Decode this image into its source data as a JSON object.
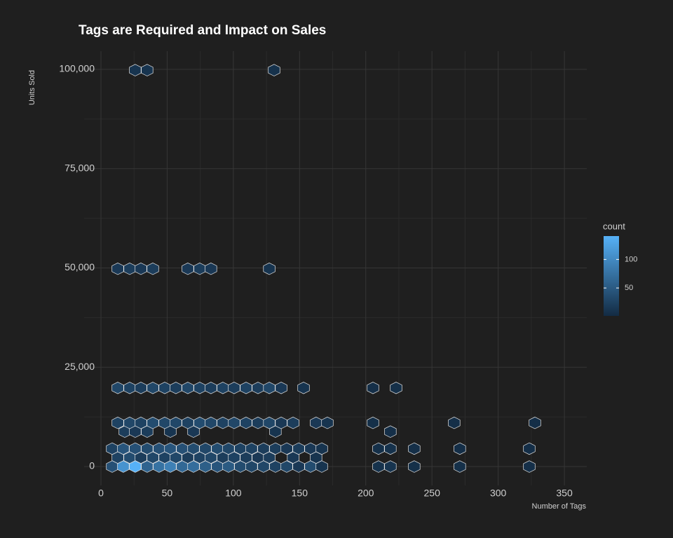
{
  "chart_data": {
    "type": "hexbin",
    "title": "Tags are Required and Impact on Sales",
    "x_label": "Number of Tags",
    "y_label": "Units Sold",
    "xlim": [
      -12.7,
      366.9
    ],
    "ylim": [
      -4760,
      104590
    ],
    "xticks": [
      0,
      50,
      100,
      150,
      200,
      250,
      300,
      350
    ],
    "yticks": [
      {
        "value": 0,
        "label": "0"
      },
      {
        "value": 25000,
        "label": "25,000"
      },
      {
        "value": 50000,
        "label": "50,000"
      },
      {
        "value": 75000,
        "label": "75,000"
      },
      {
        "value": 100000,
        "label": "100,000"
      }
    ],
    "x_minor_ticks": [
      25,
      75,
      125,
      175,
      225,
      275,
      325
    ],
    "y_minor_ticks": [
      12500,
      37500,
      62500,
      87500
    ],
    "grid": true,
    "legend": {
      "title": "count",
      "ticks": [
        50,
        100
      ],
      "lim": [
        1,
        141
      ],
      "color_low": "#132B43",
      "color_high": "#56B1F7",
      "position": "right"
    },
    "hex_rows": [
      {
        "y": 0,
        "x": [
          8.5,
          16.9,
          25.9,
          34.9,
          43.9,
          52.4,
          61.4,
          69.9,
          78.9,
          87.9,
          96.3,
          105.3,
          113.8,
          122.8,
          131.8,
          140.3,
          149.3,
          158.3,
          166.8,
          209.6,
          218.6,
          236.6,
          271,
          323.5
        ],
        "count": [
          40,
          110,
          141,
          60,
          75,
          90,
          65,
          70,
          55,
          45,
          50,
          35,
          30,
          30,
          25,
          30,
          15,
          35,
          10,
          8,
          10,
          6,
          6,
          5
        ]
      },
      {
        "y": 2250,
        "x": [
          12.7,
          21.7,
          30.2,
          39.2,
          48.2,
          56.6,
          65.6,
          74.6,
          83.1,
          92.1,
          100.6,
          109.6,
          118.6,
          127.1,
          145.1,
          162.5
        ],
        "count": [
          25,
          35,
          20,
          30,
          25,
          30,
          20,
          25,
          30,
          20,
          25,
          20,
          15,
          20,
          15,
          10
        ]
      },
      {
        "y": 4500,
        "x": [
          8.5,
          16.9,
          25.9,
          34.9,
          43.9,
          52.4,
          61.4,
          69.9,
          78.9,
          87.9,
          96.3,
          105.3,
          113.8,
          122.8,
          131.8,
          140.3,
          149.3,
          158.3,
          166.8,
          209.6,
          218.6,
          236.6,
          271,
          323.5
        ],
        "count": [
          25,
          45,
          40,
          35,
          40,
          45,
          40,
          35,
          30,
          35,
          30,
          25,
          25,
          20,
          20,
          15,
          20,
          15,
          10,
          6,
          8,
          5,
          4,
          4
        ]
      },
      {
        "y": 8800,
        "x": [
          18,
          25.9,
          34.9,
          52.4,
          69.9,
          131.8,
          218.6
        ],
        "count": [
          20,
          15,
          20,
          10,
          15,
          10,
          5
        ]
      },
      {
        "y": 11000,
        "x": [
          12.7,
          21.7,
          30.2,
          39.2,
          48.2,
          56.6,
          65.6,
          74.6,
          83.1,
          92.1,
          100.6,
          109.6,
          118.6,
          127.1,
          136.1,
          145.1,
          162.5,
          171,
          205.4,
          266.8,
          327.7
        ],
        "count": [
          25,
          30,
          25,
          35,
          30,
          30,
          25,
          35,
          30,
          25,
          30,
          25,
          20,
          30,
          15,
          20,
          15,
          10,
          6,
          5,
          4
        ]
      },
      {
        "y": 19800,
        "x": [
          12.7,
          21.7,
          30.2,
          39.2,
          48.2,
          56.6,
          65.6,
          74.6,
          83.1,
          92.1,
          100.6,
          109.6,
          118.6,
          127.1,
          136.1,
          153,
          205.4,
          222.9
        ],
        "count": [
          30,
          25,
          20,
          30,
          25,
          20,
          30,
          25,
          20,
          25,
          20,
          25,
          20,
          30,
          15,
          10,
          5,
          6
        ]
      },
      {
        "y": 49800,
        "x": [
          12.7,
          21.7,
          30.2,
          39.2,
          65.6,
          74.6,
          83.1,
          127.1
        ],
        "count": [
          15,
          20,
          15,
          20,
          15,
          20,
          15,
          10
        ]
      },
      {
        "y": 99800,
        "x": [
          25.9,
          34.9,
          130.8
        ],
        "count": [
          10,
          10,
          8
        ]
      }
    ]
  }
}
